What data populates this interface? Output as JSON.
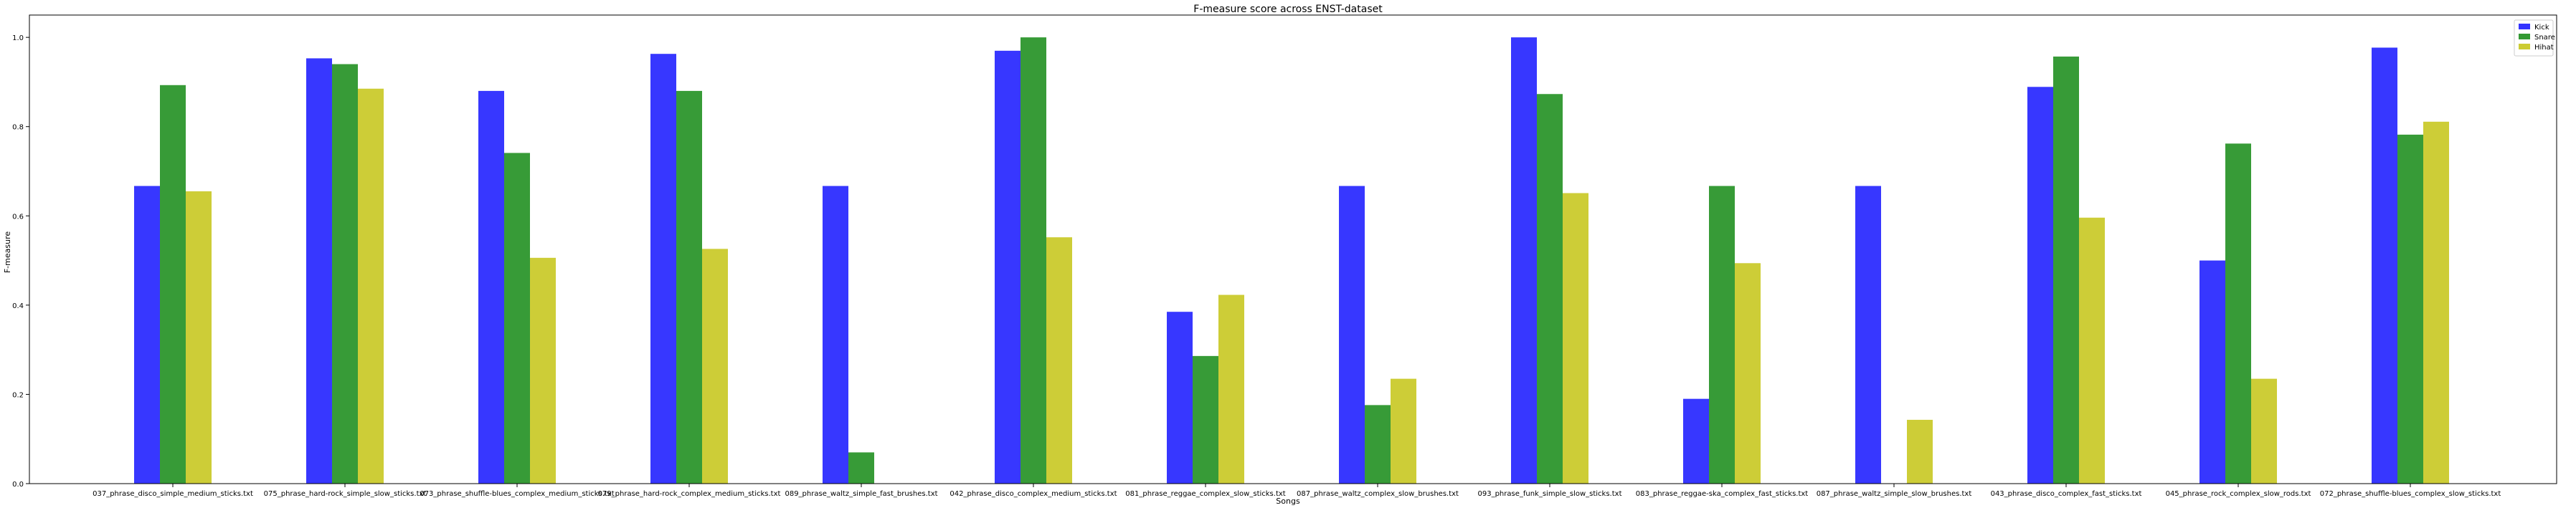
{
  "chart_data": {
    "type": "bar",
    "title": "F-measure score across ENST-dataset",
    "xlabel": "Songs",
    "ylabel": "F-measure",
    "ylim": [
      0,
      1.05
    ],
    "yticks": [
      "0.0",
      "0.2",
      "0.4",
      "0.6",
      "0.8",
      "1.0"
    ],
    "grid": false,
    "legend_position": "top-right",
    "categories": [
      "037_phrase_disco_simple_medium_sticks.txt",
      "075_phrase_hard-rock_simple_slow_sticks.txt",
      "073_phrase_shuffle-blues_complex_medium_sticks.txt",
      "079_phrase_hard-rock_complex_medium_sticks.txt",
      "089_phrase_waltz_simple_fast_brushes.txt",
      "042_phrase_disco_complex_medium_sticks.txt",
      "081_phrase_reggae_complex_slow_sticks.txt",
      "087_phrase_waltz_complex_slow_brushes.txt",
      "093_phrase_funk_simple_slow_sticks.txt",
      "083_phrase_reggae-ska_complex_fast_sticks.txt",
      "087_phrase_waltz_simple_slow_brushes.txt",
      "043_phrase_disco_complex_fast_sticks.txt",
      "045_phrase_rock_complex_slow_rods.txt",
      "072_phrase_shuffle-blues_complex_slow_sticks.txt"
    ],
    "series": [
      {
        "name": "Kick",
        "color": "#3333ff",
        "values": [
          0.667,
          0.953,
          0.88,
          0.963,
          0.667,
          0.97,
          0.385,
          0.667,
          1.0,
          0.19,
          0.667,
          0.889,
          0.5,
          0.977
        ]
      },
      {
        "name": "Snare",
        "color": "#339933",
        "values": [
          0.893,
          0.94,
          0.741,
          0.88,
          0.07,
          1.0,
          0.286,
          0.176,
          0.873,
          0.667,
          0.0,
          0.957,
          0.762,
          0.782
        ]
      },
      {
        "name": "Hihat",
        "color": "#cccc33",
        "values": [
          0.655,
          0.885,
          0.506,
          0.526,
          0.0,
          0.552,
          0.423,
          0.235,
          0.651,
          0.494,
          0.143,
          0.596,
          0.235,
          0.811
        ]
      }
    ]
  }
}
